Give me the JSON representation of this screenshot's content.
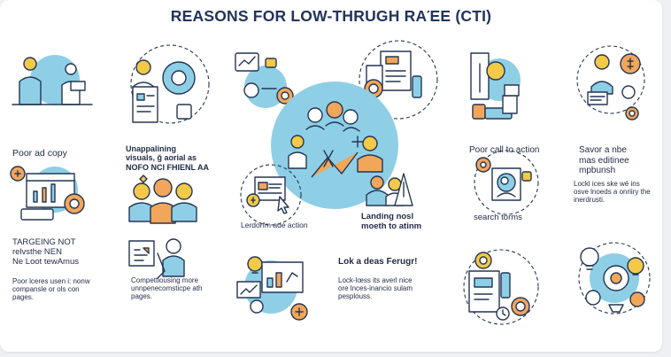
{
  "title": "REASONS FOR LOW-THRUGH RAΈE (CTI)",
  "colors": {
    "navy": "#22335b",
    "accent_blue": "#8ecfe6",
    "orange": "#f2a65a",
    "yellow": "#f3c948",
    "outline": "#243553"
  },
  "labels": {
    "poor_ad_copy": "Poor ad copy",
    "unappealing": "Unappalining\nvisuals, ğ aorial as\nNOFO NCI FHIENL AA",
    "targeting": "TARGEING NOT\nrelvsthe NEN\nNe Loot tewAmus",
    "targeting_desc": "Poor lceres usen i: nonw\ncompansle or ols con\npages.",
    "competition_desc": "Compettiousing more\nunnpenecomsticpe ath\npages.",
    "leading": "Lerdorfm ade action",
    "landing": "Landing nosl\nmoeth to atinm",
    "look": "Lok a deas Ferugr!",
    "look_desc": "Lock-lœss its averl nice\nore lnces-inancio sulam\npesplouss.",
    "poor_cta": "Poor call to action",
    "search_terms": "search torms",
    "savor": "Savor a nbe\nmas editinee\nmpbunsh",
    "savor_desc": "Lockl ices ske wé ins\nosve lnoeds a onriiry the\ninerdrusti."
  },
  "icons": [
    "businessmen-meeting-icon",
    "report-gear-icon",
    "mobile-apps-icon",
    "documents-badge-icon",
    "office-tower-icon",
    "money-manager-icon",
    "browser-analytics-icon",
    "team-people-icon",
    "central-team-chart-icon",
    "pay-per-click-icon",
    "people-analysis-icon",
    "location-search-icon",
    "presenter-charts-icon",
    "growth-screen-icon",
    "checklist-clock-icon",
    "ideas-gears-icon"
  ]
}
